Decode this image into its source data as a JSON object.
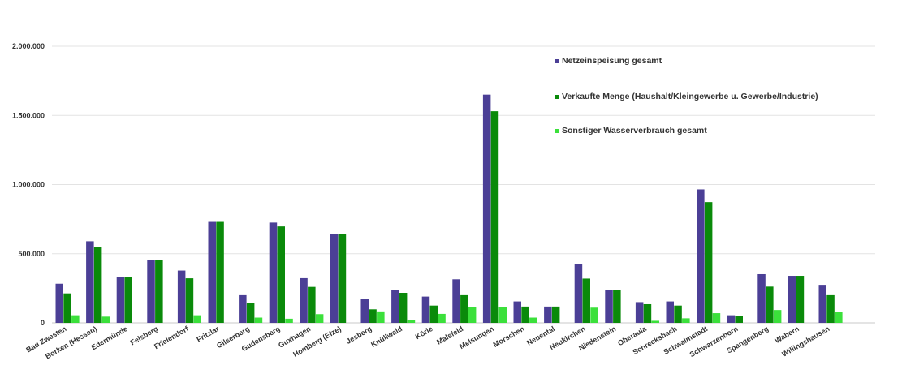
{
  "chart_data": {
    "type": "bar",
    "title": "",
    "xlabel": "",
    "ylabel": "",
    "ylim": [
      0,
      2000000
    ],
    "ytick_values": [
      0,
      500000,
      1000000,
      1500000,
      2000000
    ],
    "ytick_labels": [
      "0",
      "500.000",
      "1.000.000",
      "1.500.000",
      "2.000.000"
    ],
    "grid": true,
    "legend_position": "top-right",
    "categories": [
      "Bad Zwesten",
      "Borken (Hessen)",
      "Edermünde",
      "Felsberg",
      "Frielendorf",
      "Fritzlar",
      "Gilserberg",
      "Gudensberg",
      "Guxhagen",
      "Homberg (Efze)",
      "Jesberg",
      "Knüllwald",
      "Körle",
      "Malsfeld",
      "Melsungen",
      "Morschen",
      "Neuental",
      "Neukirchen",
      "Niedenstein",
      "Oberaula",
      "Schrecksbach",
      "Schwalmstadt",
      "Schwarzenborn",
      "Spangenberg",
      "Wabern",
      "Willingshausen"
    ],
    "series": [
      {
        "name": "Netzeinspeisung gesamt",
        "color": "#4b3f96",
        "values": [
          283000,
          590000,
          330000,
          455000,
          378000,
          730000,
          200000,
          725000,
          323000,
          645000,
          175000,
          237000,
          190000,
          315000,
          1650000,
          155000,
          118000,
          425000,
          240000,
          150000,
          155000,
          965000,
          55000,
          352000,
          340000,
          275000
        ]
      },
      {
        "name": "Verkaufte Menge (Haushalt/Kleingewerbe u. Gewerbe/Industrie)",
        "color": "#0a8a0a",
        "values": [
          213000,
          550000,
          330000,
          455000,
          322000,
          730000,
          145000,
          697000,
          260000,
          645000,
          98000,
          217000,
          125000,
          200000,
          1530000,
          118000,
          118000,
          320000,
          240000,
          135000,
          125000,
          873000,
          48000,
          262000,
          340000,
          200000
        ]
      },
      {
        "name": "Sonstiger Wasserverbrauch gesamt",
        "color": "#3be03b",
        "values": [
          55000,
          45000,
          0,
          0,
          55000,
          0,
          38000,
          30000,
          63000,
          0,
          83000,
          20000,
          65000,
          113000,
          117000,
          38000,
          0,
          110000,
          0,
          15000,
          33000,
          70000,
          0,
          93000,
          0,
          78000
        ]
      }
    ]
  }
}
